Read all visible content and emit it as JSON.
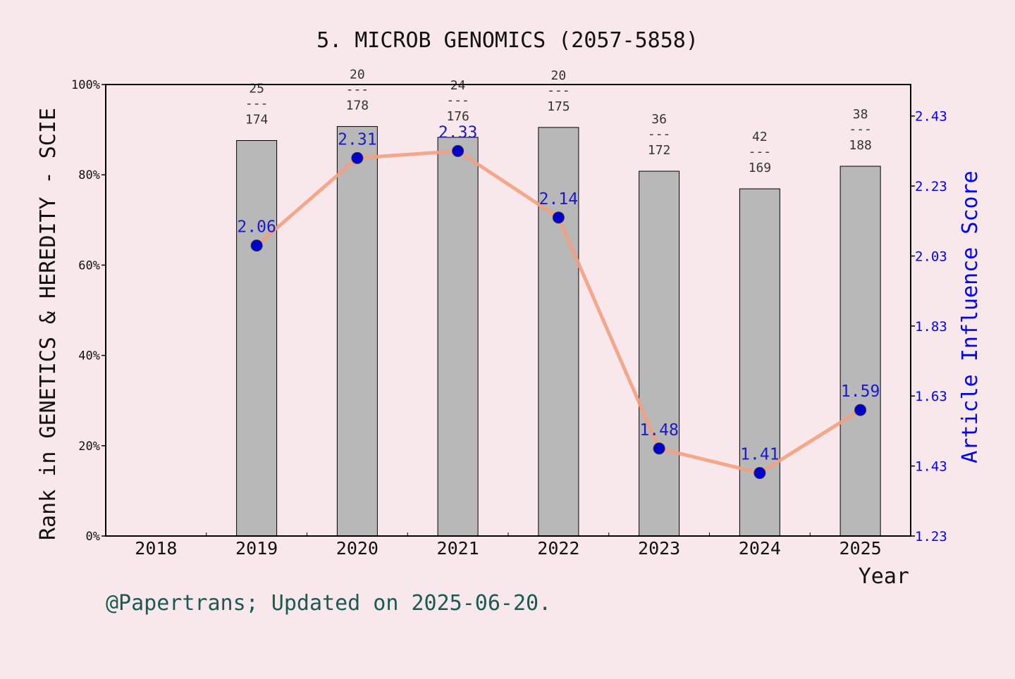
{
  "chart_data": {
    "type": "bar",
    "title": "5. MICROB GENOMICS (2057-5858)",
    "xlabel": "Year",
    "ylabel_left": "Rank in GENETICS & HEREDITY - SCIE",
    "ylabel_right": "Article Influence Score",
    "footer": "@Papertrans; Updated on 2025-06-20.",
    "categories": [
      "2018",
      "2019",
      "2020",
      "2021",
      "2022",
      "2023",
      "2024",
      "2025"
    ],
    "left_axis": {
      "ylim": [
        0,
        100
      ],
      "ticks": [
        "0%",
        "20%",
        "40%",
        "60%",
        "80%",
        "100%"
      ]
    },
    "right_axis": {
      "ylim": [
        1.23,
        2.52
      ],
      "ticks": [
        "1.23",
        "1.43",
        "1.63",
        "1.83",
        "2.03",
        "2.23",
        "2.43"
      ]
    },
    "bars": [
      {
        "year": "2019",
        "value": 87.6,
        "rank": "25",
        "total": "174",
        "separator": "---"
      },
      {
        "year": "2020",
        "value": 90.7,
        "rank": "20",
        "total": "178",
        "separator": "---"
      },
      {
        "year": "2021",
        "value": 88.3,
        "rank": "24",
        "total": "176",
        "separator": "---"
      },
      {
        "year": "2022",
        "value": 90.5,
        "rank": "20",
        "total": "175",
        "separator": "---"
      },
      {
        "year": "2023",
        "value": 80.8,
        "rank": "36",
        "total": "172",
        "separator": "---"
      },
      {
        "year": "2024",
        "value": 76.9,
        "rank": "42",
        "total": "169",
        "separator": "---"
      },
      {
        "year": "2025",
        "value": 81.9,
        "rank": "38",
        "total": "188",
        "separator": "---"
      }
    ],
    "line": {
      "name": "Article Influence Score",
      "points": [
        {
          "year": "2019",
          "value": 2.06,
          "label": "2.06"
        },
        {
          "year": "2020",
          "value": 2.31,
          "label": "2.31"
        },
        {
          "year": "2021",
          "value": 2.33,
          "label": "2.33"
        },
        {
          "year": "2022",
          "value": 2.14,
          "label": "2.14"
        },
        {
          "year": "2023",
          "value": 1.48,
          "label": "1.48"
        },
        {
          "year": "2024",
          "value": 1.41,
          "label": "1.41"
        },
        {
          "year": "2025",
          "value": 1.59,
          "label": "1.59"
        }
      ]
    },
    "colors": {
      "background": "#f8e8ec",
      "bar_fill": "#b8b8b8",
      "line": "#f4a080",
      "marker": "#0000cc",
      "right_axis": "#0000ff",
      "footer": "#1a5a50"
    },
    "grid": false
  }
}
